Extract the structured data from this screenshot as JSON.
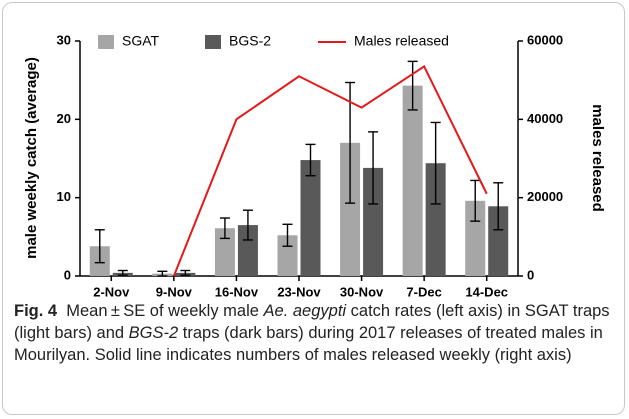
{
  "chart_data": {
    "type": "bar",
    "categories": [
      "2-Nov",
      "9-Nov",
      "16-Nov",
      "23-Nov",
      "30-Nov",
      "7-Dec",
      "14-Dec"
    ],
    "ylabel": "male weekly catch (average)",
    "y2label": "males released",
    "ylim": [
      0,
      30
    ],
    "yticks": [
      0,
      10,
      20,
      30
    ],
    "y2lim": [
      0,
      60000
    ],
    "y2ticks": [
      0,
      20000,
      40000,
      60000
    ],
    "series": [
      {
        "name": "SGAT",
        "color": "#a6a6a6",
        "values": [
          3.8,
          0.3,
          6.1,
          5.2,
          17.0,
          24.3,
          9.6
        ],
        "errors": [
          2.1,
          0.3,
          1.3,
          1.4,
          7.7,
          3.1,
          2.6
        ]
      },
      {
        "name": "BGS-2",
        "color": "#595959",
        "values": [
          0.4,
          0.4,
          6.5,
          14.8,
          13.8,
          14.4,
          8.9
        ],
        "errors": [
          0.3,
          0.3,
          1.9,
          2.0,
          4.6,
          5.2,
          3.0
        ]
      },
      {
        "name": "Males released",
        "type": "line",
        "axis": "y2",
        "color": "#e3191c",
        "values": [
          null,
          0,
          40000,
          51000,
          43000,
          53500,
          21000
        ]
      }
    ]
  },
  "caption": {
    "label": "Fig. 4",
    "runs": [
      "Mean ± SE of weekly male ",
      "Ae. aegypti",
      " catch rates (left axis) in SGAT traps (light bars) and ",
      "BGS-2",
      " traps (dark bars) during 2017 releases of treated males in Mourilyan. Solid line indicates numbers of males released weekly (right axis)"
    ]
  }
}
